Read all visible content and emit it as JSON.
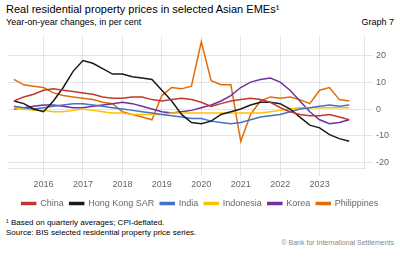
{
  "chart_data": {
    "type": "line",
    "title": "Real residential property prices in selected Asian EMEs¹",
    "subtitle": "Year-on-year changes, in per cent",
    "annotations": [
      "Graph 7",
      "¹ Based on quarterly averages; CPI-deflated.",
      "Source: BIS selected residential property price series.",
      "© Bank for International Settlements"
    ],
    "x": [
      2015.25,
      2015.5,
      2015.75,
      2016.0,
      2016.25,
      2016.5,
      2016.75,
      2017.0,
      2017.25,
      2017.5,
      2017.75,
      2018.0,
      2018.25,
      2018.5,
      2018.75,
      2019.0,
      2019.25,
      2019.5,
      2019.75,
      2020.0,
      2020.25,
      2020.5,
      2020.75,
      2021.0,
      2021.25,
      2021.5,
      2021.75,
      2022.0,
      2022.25,
      2022.5,
      2022.75,
      2023.0,
      2023.25,
      2023.5,
      2023.75
    ],
    "series": [
      {
        "name": "China",
        "color": "#c0392b",
        "values": [
          3.0,
          4.5,
          5.5,
          7.0,
          7.5,
          7.0,
          6.5,
          6.0,
          5.5,
          4.5,
          4.0,
          4.0,
          4.5,
          4.5,
          3.5,
          3.0,
          3.5,
          4.0,
          3.5,
          2.5,
          1.0,
          2.0,
          3.0,
          3.5,
          4.0,
          3.5,
          2.5,
          0.5,
          -1.0,
          -2.0,
          -2.5,
          -2.5,
          -2.0,
          -3.0,
          -4.0
        ]
      },
      {
        "name": "Hong Kong SAR",
        "color": "#1a1a1a",
        "values": [
          3.0,
          2.0,
          0.0,
          -1.0,
          3.0,
          8.0,
          14.0,
          18.0,
          17.0,
          15.0,
          13.0,
          13.0,
          12.0,
          11.5,
          11.0,
          7.0,
          3.0,
          -2.0,
          -5.0,
          -5.5,
          -4.5,
          -2.0,
          -1.0,
          0.0,
          1.5,
          2.5,
          2.5,
          2.0,
          0.0,
          -3.0,
          -6.0,
          -7.0,
          -9.5,
          -11.0,
          -12.0
        ]
      },
      {
        "name": "India",
        "color": "#4472c4",
        "values": [
          1.0,
          0.5,
          0.0,
          0.5,
          1.0,
          1.5,
          2.0,
          2.0,
          1.5,
          1.0,
          0.5,
          0.0,
          -0.5,
          -1.0,
          -1.5,
          -2.0,
          -2.5,
          -3.0,
          -3.5,
          -3.5,
          -4.5,
          -5.0,
          -5.5,
          -5.0,
          -4.0,
          -3.0,
          -2.5,
          -2.0,
          -1.0,
          0.0,
          0.5,
          1.0,
          1.5,
          1.0,
          1.5
        ]
      },
      {
        "name": "Indonesia",
        "color": "#ffc000",
        "values": [
          0.5,
          0.0,
          -0.5,
          -0.5,
          -1.0,
          -1.0,
          -0.5,
          0.0,
          -0.5,
          -1.0,
          -1.5,
          -1.5,
          -2.0,
          -2.0,
          -2.0,
          -2.0,
          -1.5,
          -1.5,
          -1.5,
          -1.5,
          -1.5,
          -1.5,
          -1.5,
          -1.5,
          -1.5,
          -1.5,
          -1.0,
          -0.5,
          0.0,
          0.5,
          0.5,
          0.5,
          0.5,
          0.5,
          0.5
        ]
      },
      {
        "name": "Korea",
        "color": "#7030a0",
        "values": [
          0.0,
          0.5,
          1.0,
          1.5,
          1.5,
          1.0,
          0.5,
          0.5,
          1.0,
          1.5,
          2.0,
          2.5,
          2.0,
          1.0,
          0.0,
          -1.0,
          -1.5,
          -1.0,
          -0.5,
          0.5,
          1.5,
          3.0,
          5.0,
          8.0,
          10.0,
          11.0,
          11.5,
          10.0,
          7.0,
          3.0,
          -1.0,
          -4.0,
          -5.5,
          -5.0,
          -4.0
        ]
      },
      {
        "name": "Philippines",
        "color": "#e36c09",
        "values": [
          11.0,
          9.0,
          8.5,
          8.0,
          6.0,
          5.0,
          4.5,
          4.0,
          3.5,
          2.5,
          2.0,
          -1.0,
          -2.0,
          -3.0,
          -4.0,
          5.0,
          8.0,
          7.5,
          8.5,
          25.0,
          10.5,
          9.0,
          9.0,
          -12.0,
          -2.0,
          3.0,
          4.5,
          4.0,
          4.5,
          3.5,
          2.0,
          7.0,
          8.0,
          3.5,
          3.0
        ]
      }
    ],
    "xlim": [
      2015.1,
      2024.15
    ],
    "xticks": [
      2016,
      2017,
      2018,
      2019,
      2020,
      2021,
      2022,
      2023
    ],
    "ylim": [
      -22,
      27
    ],
    "yticks": [
      -20,
      -10,
      0,
      10,
      20
    ],
    "grid": true,
    "legend": "bottom"
  }
}
